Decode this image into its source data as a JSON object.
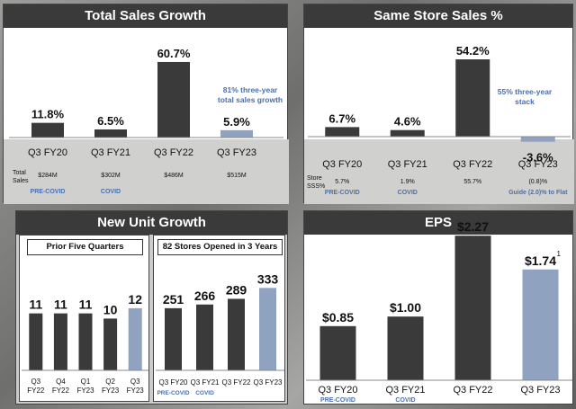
{
  "colors": {
    "dark": "#3a3a3a",
    "light": "#8fa2c0",
    "blue": "#4a6fb0",
    "title_bg": "#3a3a3a"
  },
  "panels": {
    "total_sales": {
      "title": "Total Sales Growth",
      "row_label": "Total Sales",
      "note": "81% three-year total sales growth"
    },
    "sss": {
      "title": "Same Store Sales %",
      "row_label": "Store SSS%",
      "note": "55% three-year stack"
    },
    "units": {
      "title": "New Unit Growth",
      "sub_left": "Prior Five Quarters",
      "sub_right": "82 Stores Opened in 3 Years"
    },
    "eps": {
      "title": "EPS"
    }
  },
  "chart_data": [
    {
      "type": "bar",
      "id": "total_sales",
      "categories": [
        "Q3 FY20",
        "Q3 FY21",
        "Q3 FY22",
        "Q3 FY23"
      ],
      "values": [
        11.8,
        6.5,
        60.7,
        5.9
      ],
      "labels": [
        "11.8%",
        "6.5%",
        "60.7%",
        "5.9%"
      ],
      "row_values": [
        "$284M",
        "$302M",
        "$486M",
        "$515M"
      ],
      "sublabels": [
        "PRE-COVID",
        "COVID",
        "",
        ""
      ],
      "highlight": 3,
      "ylim": [
        0,
        65
      ]
    },
    {
      "type": "bar",
      "id": "sss",
      "categories": [
        "Q3 FY20",
        "Q3 FY21",
        "Q3 FY22",
        "Q3 FY23"
      ],
      "values": [
        6.7,
        4.6,
        54.2,
        -3.6
      ],
      "labels": [
        "6.7%",
        "4.6%",
        "54.2%",
        "-3.6%"
      ],
      "row_values": [
        "5.7%",
        "1.9%",
        "55.7%",
        "(0.8)%"
      ],
      "sublabels": [
        "PRE-COVID",
        "COVID",
        "",
        "Guide (2.0)% to Flat"
      ],
      "highlight": 3,
      "ylim": [
        -5,
        58
      ]
    },
    {
      "type": "bar",
      "id": "units_prior",
      "categories": [
        "Q3 FY22",
        "Q4 FY22",
        "Q1 FY23",
        "Q2 FY23",
        "Q3 FY23"
      ],
      "values": [
        11,
        11,
        11,
        10,
        12
      ],
      "labels": [
        "11",
        "11",
        "11",
        "10",
        "12"
      ],
      "highlight": 4,
      "ylim": [
        0,
        12.5
      ]
    },
    {
      "type": "bar",
      "id": "units_total",
      "categories": [
        "Q3 FY20",
        "Q3 FY21",
        "Q3 FY22",
        "Q3 FY23"
      ],
      "values": [
        251,
        266,
        289,
        333
      ],
      "labels": [
        "251",
        "266",
        "289",
        "333"
      ],
      "sublabels": [
        "PRE-COVID",
        "COVID",
        "",
        ""
      ],
      "highlight": 3,
      "ylim": [
        0,
        345
      ]
    },
    {
      "type": "bar",
      "id": "eps",
      "categories": [
        "Q3 FY20",
        "Q3 FY21",
        "Q3 FY22",
        "Q3 FY23"
      ],
      "values": [
        0.85,
        1.0,
        2.27,
        1.74
      ],
      "labels": [
        "$0.85",
        "$1.00",
        "$2.27",
        "$1.74"
      ],
      "label_sup": [
        "",
        "",
        "",
        "1"
      ],
      "sublabels": [
        "PRE-COVID",
        "COVID",
        "",
        ""
      ],
      "highlight": 3,
      "ylim": [
        0,
        2.4
      ]
    }
  ]
}
